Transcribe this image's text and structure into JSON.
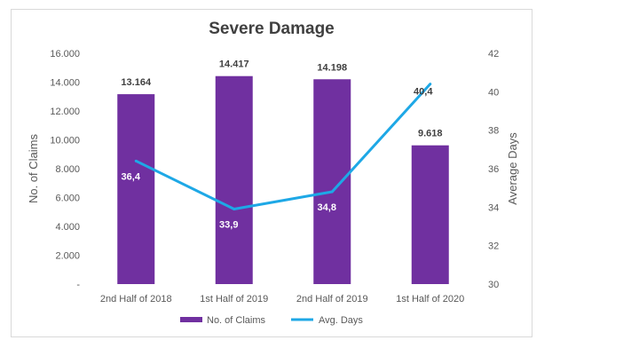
{
  "chart_data": {
    "type": "bar",
    "title": "Severe Damage",
    "categories": [
      "2nd Half of 2018",
      "1st Half of 2019",
      "2nd Half of 2019",
      "1st Half of 2020"
    ],
    "series": [
      {
        "name": "No. of Claims",
        "type": "bar",
        "axis": "left",
        "color": "#7030a0",
        "values": [
          13164,
          14417,
          14198,
          9618
        ],
        "labels": [
          "13.164",
          "14.417",
          "14.198",
          "9.618"
        ]
      },
      {
        "name": "Avg. Days",
        "type": "line",
        "axis": "right",
        "color": "#1ea8e6",
        "values": [
          36.4,
          33.9,
          34.8,
          40.4
        ],
        "labels": [
          "36,4",
          "33,9",
          "34,8",
          "40,4"
        ]
      }
    ],
    "ylabel": "No. of Claims",
    "ylim": [
      0,
      16000
    ],
    "yticks": [
      "-",
      "2.000",
      "4.000",
      "6.000",
      "8.000",
      "10.000",
      "12.000",
      "14.000",
      "16.000"
    ],
    "y2label": "Average Days",
    "y2lim": [
      30,
      42
    ],
    "y2ticks": [
      "30",
      "32",
      "34",
      "36",
      "38",
      "40",
      "42"
    ],
    "grid": false,
    "legend": "bottom"
  }
}
